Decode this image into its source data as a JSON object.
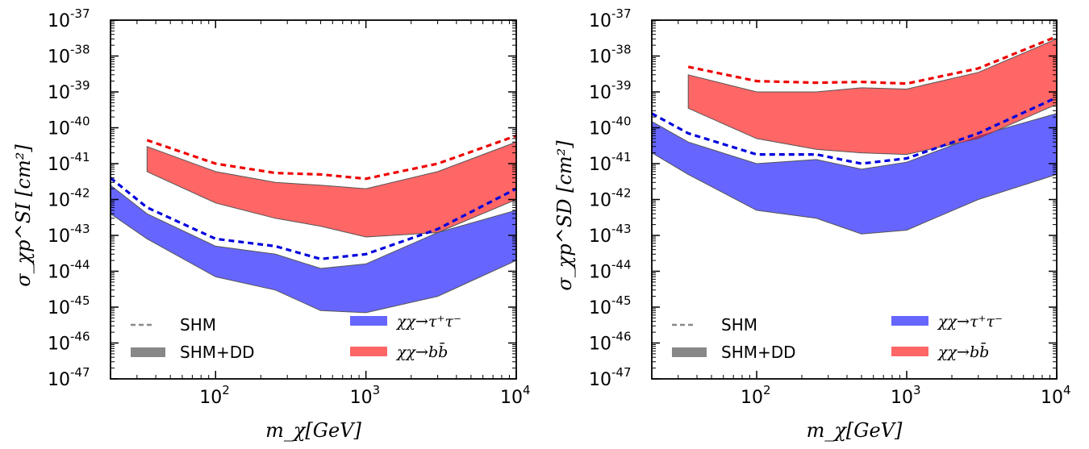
{
  "chart_data": [
    {
      "type": "area",
      "panel": "SI",
      "xlabel": "m_χ[GeV]",
      "ylabel": "σ_χp^SI [cm²]",
      "xscale": "log",
      "yscale": "log",
      "xlim": [
        20,
        10000
      ],
      "ylim": [
        1e-47,
        1e-37
      ],
      "x_ticks": [
        {
          "label": "10",
          "exp": "2",
          "value": 100
        },
        {
          "label": "10",
          "exp": "3",
          "value": 1000
        },
        {
          "label": "10",
          "exp": "4",
          "value": 10000
        }
      ],
      "y_ticks": [
        {
          "label": "10",
          "exp": "-47",
          "value": -47
        },
        {
          "label": "10",
          "exp": "-46",
          "value": -46
        },
        {
          "label": "10",
          "exp": "-45",
          "value": -45
        },
        {
          "label": "10",
          "exp": "-44",
          "value": -44
        },
        {
          "label": "10",
          "exp": "-43",
          "value": -43
        },
        {
          "label": "10",
          "exp": "-42",
          "value": -42
        },
        {
          "label": "10",
          "exp": "-41",
          "value": -41
        },
        {
          "label": "10",
          "exp": "-40",
          "value": -40
        },
        {
          "label": "10",
          "exp": "-39",
          "value": -39
        },
        {
          "label": "10",
          "exp": "-38",
          "value": -38
        },
        {
          "label": "10",
          "exp": "-37",
          "value": -37
        }
      ],
      "series": [
        {
          "name": "χχ→τ⁺τ⁻",
          "kind": "band",
          "color": "#6666ff",
          "x": [
            20,
            35,
            100,
            250,
            500,
            1000,
            3000,
            10000
          ],
          "upper": [
            2.5e-42,
            4e-43,
            5e-44,
            3e-44,
            1.2e-44,
            1.6e-44,
            1.2e-43,
            5e-43
          ],
          "lower": [
            4e-43,
            8e-44,
            7e-45,
            3e-45,
            8e-46,
            7e-46,
            2e-45,
            2e-44
          ]
        },
        {
          "name": "χχ→bb̄",
          "kind": "band",
          "color": "#ff6666",
          "x": [
            35,
            100,
            250,
            500,
            1000,
            3000,
            10000
          ],
          "upper": [
            3e-41,
            6e-42,
            3e-42,
            2.5e-42,
            2e-42,
            6e-42,
            4e-41
          ],
          "lower": [
            6e-42,
            8e-43,
            3e-43,
            1.8e-43,
            9e-44,
            1.2e-43,
            1e-42
          ]
        },
        {
          "name": "SHM τ",
          "kind": "dashed",
          "color": "#0000dd",
          "x": [
            20,
            35,
            100,
            250,
            500,
            1000,
            3000,
            10000
          ],
          "y": [
            4e-42,
            6e-43,
            8e-44,
            5e-44,
            2.2e-44,
            3e-44,
            1.5e-43,
            2e-42
          ]
        },
        {
          "name": "SHM b",
          "kind": "dashed",
          "color": "#ee0000",
          "x": [
            35,
            100,
            250,
            500,
            1000,
            3000,
            10000
          ],
          "y": [
            4.5e-41,
            1e-41,
            5.5e-42,
            5e-42,
            3.8e-42,
            1e-41,
            6e-41
          ]
        }
      ]
    },
    {
      "type": "area",
      "panel": "SD",
      "xlabel": "m_χ[GeV]",
      "ylabel": "σ_χp^SD [cm²]",
      "xscale": "log",
      "yscale": "log",
      "xlim": [
        20,
        10000
      ],
      "ylim": [
        1e-47,
        1e-37
      ],
      "x_ticks": [
        {
          "label": "10",
          "exp": "2",
          "value": 100
        },
        {
          "label": "10",
          "exp": "3",
          "value": 1000
        },
        {
          "label": "10",
          "exp": "4",
          "value": 10000
        }
      ],
      "y_ticks": [
        {
          "label": "10",
          "exp": "-47",
          "value": -47
        },
        {
          "label": "10",
          "exp": "-46",
          "value": -46
        },
        {
          "label": "10",
          "exp": "-45",
          "value": -45
        },
        {
          "label": "10",
          "exp": "-44",
          "value": -44
        },
        {
          "label": "10",
          "exp": "-43",
          "value": -43
        },
        {
          "label": "10",
          "exp": "-42",
          "value": -42
        },
        {
          "label": "10",
          "exp": "-41",
          "value": -41
        },
        {
          "label": "10",
          "exp": "-40",
          "value": -40
        },
        {
          "label": "10",
          "exp": "-39",
          "value": -39
        },
        {
          "label": "10",
          "exp": "-38",
          "value": -38
        },
        {
          "label": "10",
          "exp": "-37",
          "value": -37
        }
      ],
      "series": [
        {
          "name": "χχ→τ⁺τ⁻",
          "kind": "band",
          "color": "#6666ff",
          "x": [
            20,
            35,
            100,
            250,
            500,
            1000,
            3000,
            10000
          ],
          "upper": [
            1.5e-40,
            4e-41,
            1e-41,
            1.3e-41,
            7e-42,
            1.1e-41,
            6e-41,
            2.5e-40
          ],
          "lower": [
            2e-41,
            5e-42,
            5e-43,
            3e-43,
            1.1e-43,
            1.4e-43,
            1e-42,
            5e-42
          ]
        },
        {
          "name": "χχ→bb̄",
          "kind": "band",
          "color": "#ff6666",
          "x": [
            35,
            100,
            250,
            500,
            1000,
            3000,
            10000
          ],
          "upper": [
            3e-39,
            1e-39,
            1e-39,
            1.3e-39,
            1.2e-39,
            3.5e-39,
            3e-38
          ],
          "lower": [
            3.5e-40,
            5e-41,
            2.5e-41,
            2e-41,
            1.8e-41,
            5e-41,
            4.5e-40
          ]
        },
        {
          "name": "SHM τ",
          "kind": "dashed",
          "color": "#0000dd",
          "x": [
            20,
            35,
            100,
            250,
            500,
            1000,
            3000,
            10000
          ],
          "y": [
            2.5e-40,
            7e-41,
            1.8e-41,
            1.8e-41,
            1e-41,
            1.4e-41,
            7e-41,
            7e-40
          ]
        },
        {
          "name": "SHM b",
          "kind": "dashed",
          "color": "#ee0000",
          "x": [
            35,
            100,
            250,
            500,
            1000,
            3000,
            10000
          ],
          "y": [
            5e-39,
            2e-39,
            1.8e-39,
            1.9e-39,
            1.7e-39,
            4.5e-39,
            3.5e-38
          ]
        }
      ]
    }
  ],
  "legend": {
    "shm": "SHM",
    "shm_dd": "SHM+DD",
    "tau": "χχ→τ⁺τ⁻",
    "bb": "χχ→bb̄"
  },
  "colors": {
    "tau_band": "#6666ff",
    "b_band": "#ff6666",
    "overlap": "#b03060",
    "tau_dash": "#0000dd",
    "b_dash": "#ee0000",
    "band_edge": "#555555",
    "legend_gray": "#888888"
  }
}
